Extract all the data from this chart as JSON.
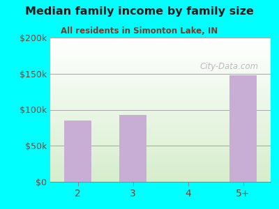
{
  "title": "Median family income by family size",
  "subtitle": "All residents in Simonton Lake, IN",
  "categories": [
    "2",
    "3",
    "4",
    "5+"
  ],
  "values": [
    85000,
    93000,
    0,
    148000
  ],
  "bar_color": "#c8aed4",
  "title_color": "#1a1a1a",
  "subtitle_color": "#7a3b2e",
  "tick_color": "#7a3b2e",
  "background_outer": "#00ffff",
  "ylim": [
    0,
    200000
  ],
  "yticks": [
    0,
    50000,
    100000,
    150000,
    200000
  ],
  "ytick_labels": [
    "$0",
    "$50k",
    "$100k",
    "$150k",
    "$200k"
  ],
  "watermark": "City-Data.com",
  "figsize": [
    4.0,
    3.0
  ],
  "dpi": 100
}
